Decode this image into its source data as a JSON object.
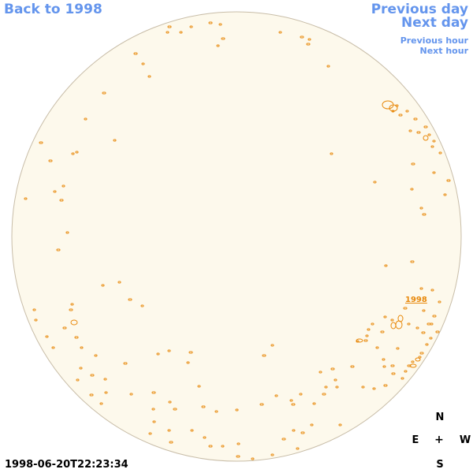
{
  "nav": {
    "back_label": "Back to 1998",
    "previous_day_label": "Previous day",
    "next_day_label": "Next day",
    "previous_hour_label": "Previous hour",
    "next_hour_label": "Next hour"
  },
  "map": {
    "region_label": "1998",
    "disk_color": "#fdf9ec",
    "feature_color": "#e8890c",
    "link_color": "#6495ed"
  },
  "compass": {
    "north": "N",
    "east": "E",
    "center": "+",
    "west": "W",
    "south": "S"
  },
  "timestamp": "1998-06-20T22:23:34"
}
